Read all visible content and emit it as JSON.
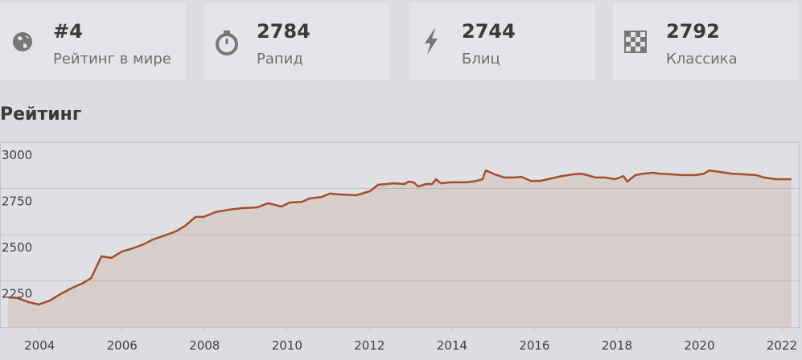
{
  "cards": [
    {
      "value": "#4",
      "label": "Рейтинг в мире"
    },
    {
      "value": "2784",
      "label": "Рапид"
    },
    {
      "value": "2744",
      "label": "Блиц"
    },
    {
      "value": "2792",
      "label": "Классика"
    }
  ],
  "chart_data": {
    "type": "line",
    "title": "Рейтинг",
    "x": [
      2003.24,
      2003.47,
      2003.73,
      2003.98,
      2004.25,
      2004.5,
      2004.8,
      2005.03,
      2005.25,
      2005.5,
      2005.74,
      2006.0,
      2006.26,
      2006.52,
      2006.75,
      2007.04,
      2007.3,
      2007.53,
      2007.78,
      2007.98,
      2008.27,
      2008.6,
      2008.89,
      2009.28,
      2009.54,
      2009.87,
      2010.06,
      2010.36,
      2010.55,
      2010.84,
      2011.04,
      2011.33,
      2011.68,
      2012.01,
      2012.21,
      2012.6,
      2012.85,
      2012.95,
      2013.07,
      2013.18,
      2013.38,
      2013.52,
      2013.61,
      2013.73,
      2013.96,
      2014.35,
      2014.59,
      2014.74,
      2014.82,
      2015.04,
      2015.27,
      2015.52,
      2015.68,
      2015.91,
      2016.15,
      2016.4,
      2016.66,
      2016.93,
      2017.12,
      2017.28,
      2017.48,
      2017.71,
      2017.96,
      2018.16,
      2018.25,
      2018.45,
      2018.64,
      2018.88,
      2019.04,
      2019.33,
      2019.62,
      2019.91,
      2020.11,
      2020.24,
      2020.5,
      2020.79,
      2021.08,
      2021.38,
      2021.57,
      2021.86,
      2022.23
    ],
    "series": [
      {
        "color": "#a24f2b",
        "values": [
          2161,
          2157,
          2135,
          2122,
          2143,
          2178,
          2213,
          2235,
          2265,
          2383,
          2374,
          2409,
          2426,
          2448,
          2474,
          2496,
          2517,
          2548,
          2596,
          2596,
          2622,
          2635,
          2643,
          2648,
          2670,
          2652,
          2674,
          2678,
          2696,
          2704,
          2722,
          2717,
          2713,
          2735,
          2770,
          2778,
          2774,
          2787,
          2783,
          2761,
          2774,
          2774,
          2800,
          2778,
          2783,
          2783,
          2791,
          2800,
          2848,
          2826,
          2809,
          2809,
          2813,
          2791,
          2791,
          2804,
          2817,
          2826,
          2830,
          2822,
          2809,
          2809,
          2800,
          2817,
          2787,
          2822,
          2830,
          2835,
          2830,
          2826,
          2822,
          2822,
          2830,
          2848,
          2839,
          2830,
          2826,
          2822,
          2809,
          2800,
          2800
        ]
      }
    ],
    "xlim": [
      2003.04,
      2022.41
    ],
    "xticks": [
      2004,
      2006,
      2008,
      2010,
      2012,
      2014,
      2016,
      2018,
      2020,
      2022
    ],
    "ylim": [
      2000,
      3000
    ],
    "yticks": [
      2250,
      2500,
      2750,
      3000
    ],
    "grid": true
  }
}
